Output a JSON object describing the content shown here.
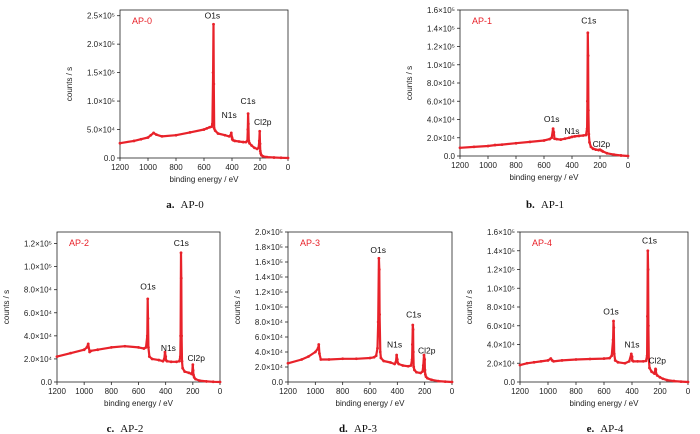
{
  "colors": {
    "series": "#e8222a",
    "axis": "#222222"
  },
  "chart_data": [
    {
      "type": "line",
      "panel": "AP-0",
      "caption_letter": "a.",
      "caption_text": "AP-0",
      "xlabel": "binding energy / eV",
      "ylabel": "counts / s",
      "xlim": [
        1200,
        0
      ],
      "ylim": [
        0,
        260000
      ],
      "x_ticks": [
        "1200",
        "1000",
        "800",
        "600",
        "400",
        "200",
        "0"
      ],
      "y_ticks": [
        {
          "v": 0,
          "label": "0.0"
        },
        {
          "v": 50000,
          "label": "5.0×10⁴"
        },
        {
          "v": 100000,
          "label": "1.0×10⁵"
        },
        {
          "v": 150000,
          "label": "1.5×10⁵"
        },
        {
          "v": 200000,
          "label": "2.0×10⁵"
        },
        {
          "v": 250000,
          "label": "2.5×10⁵"
        }
      ],
      "series": [
        {
          "x": [
            1200,
            1100,
            1050,
            1000,
            980,
            960,
            940,
            900,
            800,
            700,
            600,
            580,
            560,
            545,
            540,
            535,
            532,
            530,
            527,
            520,
            500,
            450,
            420,
            410,
            405,
            400,
            398,
            395,
            390,
            380,
            350,
            320,
            300,
            290,
            287,
            285,
            283,
            280,
            275,
            260,
            240,
            220,
            210,
            205,
            202,
            200,
            198,
            195,
            190,
            180,
            150,
            100,
            50,
            0
          ],
          "y": [
            26000,
            30000,
            33000,
            36000,
            40000,
            44000,
            41000,
            38000,
            40000,
            45000,
            50000,
            52000,
            54000,
            55000,
            60000,
            150000,
            235000,
            130000,
            52000,
            48000,
            43000,
            40000,
            38000,
            40000,
            44000,
            36000,
            33000,
            32000,
            31000,
            30000,
            29000,
            28000,
            28000,
            30000,
            50000,
            78000,
            60000,
            30000,
            26000,
            22000,
            18000,
            16000,
            18000,
            30000,
            47000,
            25000,
            12000,
            8000,
            5000,
            3000,
            1500,
            800,
            400,
            0
          ]
        }
      ],
      "annotations": [
        {
          "text": "O1s",
          "x": 540,
          "y": 245000
        },
        {
          "text": "C1s",
          "x": 285,
          "y": 95000
        },
        {
          "text": "N1s",
          "x": 420,
          "y": 70000
        },
        {
          "text": "Cl2p",
          "x": 180,
          "y": 58000
        }
      ]
    },
    {
      "type": "line",
      "panel": "AP-1",
      "caption_letter": "b.",
      "caption_text": "AP-1",
      "xlabel": "binding energy / eV",
      "ylabel": "counts / s",
      "xlim": [
        1200,
        0
      ],
      "ylim": [
        0,
        160000
      ],
      "x_ticks": [
        "1200",
        "1000",
        "800",
        "600",
        "400",
        "200",
        "0"
      ],
      "y_ticks": [
        {
          "v": 0,
          "label": "0.0"
        },
        {
          "v": 20000,
          "label": "2.0×10⁴"
        },
        {
          "v": 40000,
          "label": "4.0×10⁴"
        },
        {
          "v": 60000,
          "label": "6.0×10⁴"
        },
        {
          "v": 80000,
          "label": "8.0×10⁴"
        },
        {
          "v": 100000,
          "label": "1.0×10⁵"
        },
        {
          "v": 120000,
          "label": "1.2×10⁵"
        },
        {
          "v": 140000,
          "label": "1.4×10⁵"
        },
        {
          "v": 160000,
          "label": "1.6×10⁵"
        }
      ],
      "series": [
        {
          "x": [
            1200,
            1100,
            1000,
            950,
            900,
            800,
            700,
            600,
            560,
            545,
            535,
            530,
            525,
            510,
            480,
            450,
            420,
            400,
            380,
            350,
            320,
            300,
            292,
            290,
            287,
            285,
            283,
            280,
            275,
            265,
            250,
            230,
            210,
            200,
            190,
            180,
            150,
            100,
            50,
            0
          ],
          "y": [
            9000,
            10000,
            11000,
            12000,
            12500,
            14000,
            15500,
            17000,
            18500,
            20000,
            30000,
            26000,
            19000,
            18500,
            18000,
            19000,
            20000,
            21000,
            21500,
            22000,
            22500,
            23000,
            30000,
            60000,
            135000,
            110000,
            50000,
            24000,
            15000,
            10000,
            8000,
            7000,
            6500,
            7000,
            6000,
            5000,
            3000,
            1500,
            600,
            0
          ]
        }
      ],
      "annotations": [
        {
          "text": "C1s",
          "x": 280,
          "y": 145000
        },
        {
          "text": "O1s",
          "x": 545,
          "y": 37000
        },
        {
          "text": "N1s",
          "x": 400,
          "y": 24000
        },
        {
          "text": "Cl2p",
          "x": 190,
          "y": 10000
        }
      ]
    },
    {
      "type": "line",
      "panel": "AP-2",
      "caption_letter": "c.",
      "caption_text": "AP-2",
      "xlabel": "binding energy / eV",
      "ylabel": "counts / s",
      "xlim": [
        1200,
        0
      ],
      "ylim": [
        0,
        130000
      ],
      "x_ticks": [
        "1200",
        "1000",
        "800",
        "600",
        "400",
        "200",
        "0"
      ],
      "y_ticks": [
        {
          "v": 0,
          "label": "0.0"
        },
        {
          "v": 20000,
          "label": "2.0×10⁴"
        },
        {
          "v": 40000,
          "label": "4.0×10⁴"
        },
        {
          "v": 60000,
          "label": "6.0×10⁴"
        },
        {
          "v": 80000,
          "label": "8.0×10⁴"
        },
        {
          "v": 100000,
          "label": "1.0×10⁵"
        },
        {
          "v": 120000,
          "label": "1.2×10⁵"
        }
      ],
      "series": [
        {
          "x": [
            1200,
            1100,
            1000,
            980,
            970,
            960,
            950,
            900,
            800,
            700,
            600,
            560,
            545,
            535,
            532,
            530,
            527,
            520,
            500,
            450,
            420,
            410,
            405,
            400,
            398,
            390,
            360,
            320,
            300,
            292,
            290,
            287,
            285,
            283,
            280,
            275,
            260,
            230,
            210,
            205,
            200,
            198,
            195,
            190,
            180,
            150,
            100,
            50,
            0
          ],
          "y": [
            22000,
            25000,
            28000,
            30000,
            33000,
            26000,
            27000,
            28000,
            30000,
            31000,
            30000,
            29000,
            30000,
            40000,
            72000,
            55000,
            30000,
            22000,
            20000,
            19000,
            18000,
            20000,
            26000,
            22000,
            19000,
            18000,
            17500,
            17500,
            18000,
            22000,
            40000,
            112000,
            90000,
            40000,
            18000,
            12000,
            9000,
            8000,
            7000,
            8000,
            15000,
            10000,
            6000,
            4000,
            2500,
            1200,
            500,
            200,
            0
          ]
        }
      ],
      "annotations": [
        {
          "text": "C1s",
          "x": 285,
          "y": 118000
        },
        {
          "text": "O1s",
          "x": 530,
          "y": 80000
        },
        {
          "text": "N1s",
          "x": 380,
          "y": 27000
        },
        {
          "text": "Cl2p",
          "x": 175,
          "y": 18000
        }
      ]
    },
    {
      "type": "line",
      "panel": "AP-3",
      "caption_letter": "d.",
      "caption_text": "AP-3",
      "xlabel": "binding energy / eV",
      "ylabel": "counts / s",
      "xlim": [
        1200,
        0
      ],
      "ylim": [
        0,
        200000
      ],
      "x_ticks": [
        "1200",
        "1000",
        "800",
        "600",
        "400",
        "200",
        "0"
      ],
      "y_ticks": [
        {
          "v": 0,
          "label": "0.0"
        },
        {
          "v": 20000,
          "label": "2.0×10⁴"
        },
        {
          "v": 40000,
          "label": "4.0×10⁴"
        },
        {
          "v": 60000,
          "label": "6.0×10⁴"
        },
        {
          "v": 80000,
          "label": "8.0×10⁴"
        },
        {
          "v": 100000,
          "label": "1.0×10⁵"
        },
        {
          "v": 120000,
          "label": "1.2×10⁵"
        },
        {
          "v": 140000,
          "label": "1.4×10⁵"
        },
        {
          "v": 160000,
          "label": "1.6×10⁵"
        },
        {
          "v": 180000,
          "label": "1.8×10⁵"
        },
        {
          "v": 200000,
          "label": "2.0×10⁵"
        }
      ],
      "series": [
        {
          "x": [
            1200,
            1100,
            1050,
            1000,
            980,
            975,
            970,
            960,
            900,
            800,
            700,
            600,
            570,
            555,
            545,
            540,
            535,
            532,
            530,
            525,
            520,
            500,
            450,
            420,
            410,
            405,
            400,
            398,
            390,
            360,
            320,
            300,
            292,
            290,
            287,
            285,
            283,
            280,
            275,
            260,
            230,
            215,
            210,
            205,
            200,
            198,
            195,
            190,
            180,
            150,
            100,
            50,
            0
          ],
          "y": [
            25000,
            30000,
            34000,
            40000,
            45000,
            50000,
            38000,
            30000,
            30000,
            31000,
            31000,
            32000,
            33000,
            35000,
            45000,
            80000,
            165000,
            150000,
            90000,
            40000,
            32000,
            28000,
            26000,
            24000,
            27000,
            36000,
            30000,
            26000,
            24000,
            22000,
            21000,
            22000,
            30000,
            50000,
            76000,
            70000,
            40000,
            20000,
            16000,
            13000,
            12000,
            14000,
            22000,
            36000,
            30000,
            16000,
            10000,
            7000,
            5000,
            3000,
            1200,
            500,
            0
          ]
        }
      ],
      "annotations": [
        {
          "text": "O1s",
          "x": 540,
          "y": 172000
        },
        {
          "text": "C1s",
          "x": 280,
          "y": 86000
        },
        {
          "text": "N1s",
          "x": 420,
          "y": 46000
        },
        {
          "text": "Cl2p",
          "x": 185,
          "y": 38000
        }
      ]
    },
    {
      "type": "line",
      "panel": "AP-4",
      "caption_letter": "e.",
      "caption_text": "AP-4",
      "xlabel": "binding energy / eV",
      "ylabel": "counts / s",
      "xlim": [
        1200,
        0
      ],
      "ylim": [
        0,
        160000
      ],
      "x_ticks": [
        "1200",
        "1000",
        "800",
        "600",
        "400",
        "200",
        "0"
      ],
      "y_ticks": [
        {
          "v": 0,
          "label": "0.0"
        },
        {
          "v": 20000,
          "label": "2.0×10⁴"
        },
        {
          "v": 40000,
          "label": "4.0×10⁴"
        },
        {
          "v": 60000,
          "label": "6.0×10⁴"
        },
        {
          "v": 80000,
          "label": "8.0×10⁴"
        },
        {
          "v": 100000,
          "label": "1.0×10⁵"
        },
        {
          "v": 120000,
          "label": "1.2×10⁵"
        },
        {
          "v": 140000,
          "label": "1.4×10⁵"
        },
        {
          "v": 160000,
          "label": "1.6×10⁵"
        }
      ],
      "series": [
        {
          "x": [
            1200,
            1150,
            1100,
            1050,
            1000,
            980,
            970,
            960,
            900,
            800,
            700,
            600,
            560,
            545,
            535,
            532,
            530,
            527,
            520,
            500,
            450,
            420,
            405,
            400,
            398,
            390,
            360,
            320,
            300,
            292,
            290,
            287,
            285,
            283,
            280,
            275,
            260,
            240,
            232,
            230,
            228,
            220,
            200,
            180,
            150,
            100,
            50,
            0
          ],
          "y": [
            18000,
            20000,
            21000,
            22000,
            23000,
            25000,
            23000,
            22000,
            23000,
            24000,
            24500,
            25000,
            25500,
            28000,
            45000,
            65000,
            58000,
            30000,
            23000,
            21000,
            20000,
            22000,
            30000,
            27000,
            23000,
            22000,
            22000,
            22000,
            22500,
            28000,
            70000,
            140000,
            120000,
            60000,
            25000,
            15000,
            11000,
            9000,
            14000,
            13000,
            9000,
            7000,
            5000,
            3500,
            2000,
            1000,
            400,
            0
          ]
        }
      ],
      "annotations": [
        {
          "text": "C1s",
          "x": 275,
          "y": 148000
        },
        {
          "text": "O1s",
          "x": 550,
          "y": 72000
        },
        {
          "text": "N1s",
          "x": 400,
          "y": 37000
        },
        {
          "text": "Cl2p",
          "x": 220,
          "y": 20000
        }
      ]
    }
  ]
}
